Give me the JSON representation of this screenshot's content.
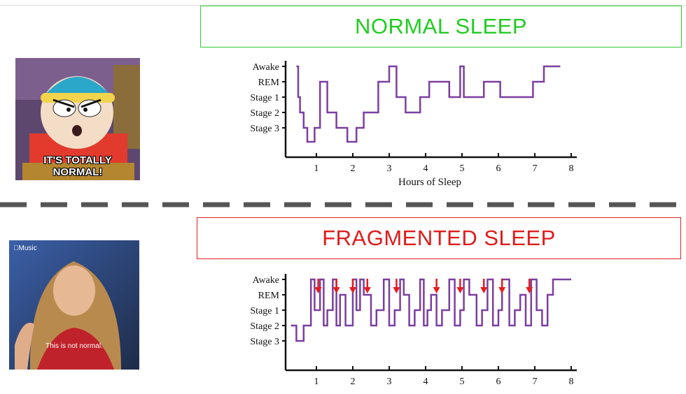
{
  "titles": {
    "normal": "NORMAL SLEEP",
    "fragmented": "FRAGMENTED SLEEP"
  },
  "colors": {
    "normal_title": "#22cc22",
    "fragmented_title": "#e01b1b",
    "trace": "#7b3fa0",
    "arrow": "#e81c1c",
    "divider": "#555555"
  },
  "memes": {
    "top": {
      "caption_line1": "IT'S TOTALLY",
      "caption_line2": "NORMAL!"
    },
    "bottom": {
      "brand": "Music",
      "caption": "This is not normal."
    }
  },
  "chart_data": [
    {
      "type": "line",
      "step": true,
      "title": "NORMAL SLEEP",
      "xlabel": "Hours of Sleep",
      "ylabel": "",
      "y_categories": [
        "Awake",
        "REM",
        "Stage 1",
        "Stage 2",
        "Stage 3"
      ],
      "xticks": [
        1,
        2,
        3,
        4,
        5,
        6,
        7,
        8
      ],
      "xlim": [
        0,
        8
      ],
      "x": [
        0.45,
        0.5,
        0.55,
        0.65,
        0.75,
        0.95,
        1.1,
        1.3,
        1.55,
        1.85,
        2.1,
        2.3,
        2.7,
        3.0,
        3.2,
        3.45,
        3.85,
        4.1,
        4.65,
        4.95,
        5.05,
        5.6,
        6.05,
        6.95,
        7.25,
        7.7
      ],
      "stage": [
        "Awake",
        "Stage 1",
        "Stage 2",
        "Stage 3",
        "Stage 4",
        "Stage 3",
        "REM",
        "Stage 2",
        "Stage 3",
        "Stage 4",
        "Stage 3",
        "Stage 2",
        "REM",
        "Awake",
        "Stage 1",
        "Stage 2",
        "Stage 1",
        "REM",
        "Stage 1",
        "Awake",
        "Stage 1",
        "REM",
        "Stage 1",
        "REM",
        "Awake",
        "Awake"
      ]
    },
    {
      "type": "line",
      "step": true,
      "title": "FRAGMENTED SLEEP",
      "xlabel": "",
      "ylabel": "",
      "y_categories": [
        "Awake",
        "REM",
        "Stage 1",
        "Stage 2",
        "Stage 3"
      ],
      "xticks": [
        1,
        2,
        3,
        4,
        5,
        6,
        7,
        8
      ],
      "xlim": [
        0,
        8
      ],
      "x": [
        0.3,
        0.45,
        0.65,
        0.85,
        0.95,
        1.1,
        1.2,
        1.3,
        1.45,
        1.55,
        1.65,
        1.8,
        2.0,
        2.1,
        2.2,
        2.3,
        2.5,
        2.65,
        2.85,
        3.0,
        3.15,
        3.3,
        3.4,
        3.55,
        3.7,
        3.85,
        3.95,
        4.05,
        4.15,
        4.3,
        4.45,
        4.65,
        4.8,
        4.95,
        5.05,
        5.2,
        5.4,
        5.55,
        5.7,
        5.85,
        6.0,
        6.1,
        6.3,
        6.45,
        6.6,
        6.75,
        6.9,
        7.05,
        7.2,
        7.35,
        7.5,
        7.75,
        8.0
      ],
      "stage": [
        "Stage 2",
        "Stage 3",
        "Stage 2",
        "Awake",
        "Stage 1",
        "Awake",
        "Stage 2",
        "Stage 1",
        "Awake",
        "Stage 2",
        "REM",
        "Stage 2",
        "Awake",
        "Stage 1",
        "Awake",
        "REM",
        "Stage 2",
        "Stage 1",
        "Awake",
        "Stage 2",
        "Stage 1",
        "Awake",
        "REM",
        "Stage 2",
        "Stage 1",
        "Awake",
        "Stage 2",
        "Stage 1",
        "REM",
        "Stage 2",
        "Stage 1",
        "Awake",
        "Stage 2",
        "Stage 1",
        "Awake",
        "REM",
        "Stage 2",
        "Stage 1",
        "Awake",
        "Stage 2",
        "Stage 1",
        "Awake",
        "Stage 2",
        "Stage 1",
        "REM",
        "Stage 2",
        "Awake",
        "Stage 1",
        "Stage 2",
        "REM",
        "Awake",
        "Awake",
        "Awake"
      ],
      "arrows_at_hours": [
        1.05,
        1.55,
        2.0,
        2.4,
        3.2,
        4.3,
        4.95,
        5.6,
        6.1,
        6.85
      ]
    }
  ]
}
